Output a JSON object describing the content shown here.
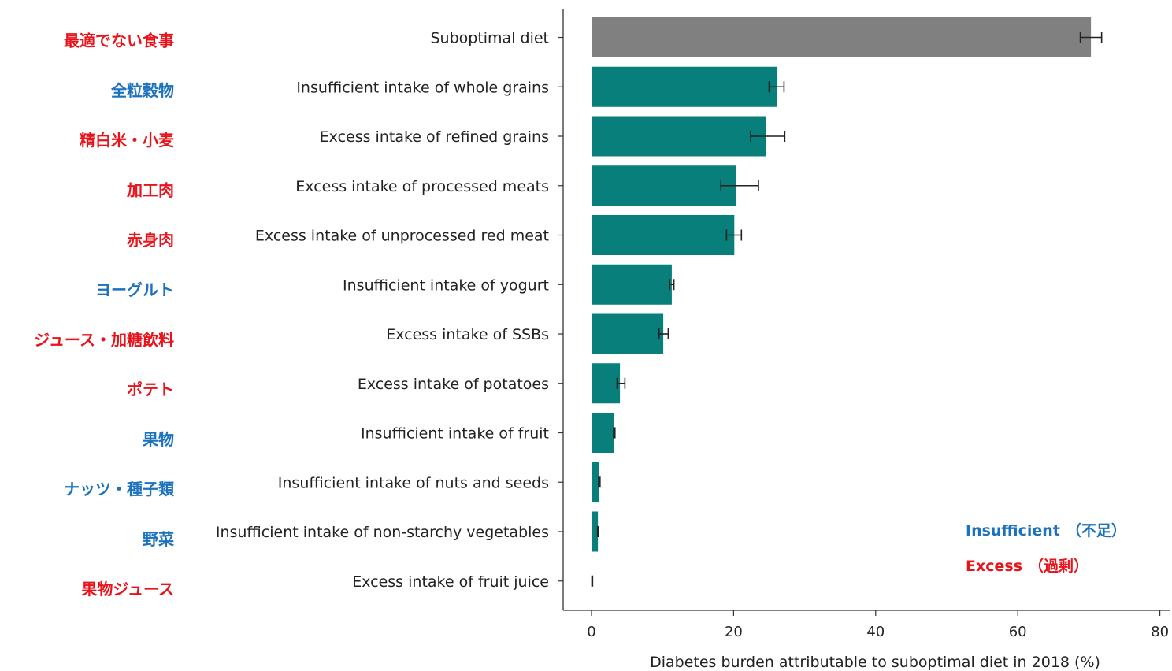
{
  "chart_data": {
    "type": "bar",
    "orientation": "horizontal",
    "categories": [
      "Suboptimal diet",
      "Insufficient intake of whole grains",
      "Excess intake of refined grains",
      "Excess intake of processed meats",
      "Excess intake of unprocessed red meat",
      "Insufficient intake of yogurt",
      "Excess intake of SSBs",
      "Excess intake of potatoes",
      "Insufficient intake of fruit",
      "Insufficient intake of nuts and seeds",
      "Insufficient intake of non-starchy vegetables",
      "Excess intake of fruit juice"
    ],
    "japanese_labels": [
      "最適でない食事",
      "全粒穀物",
      "精白米・小麦",
      "加工肉",
      "赤身肉",
      "ヨーグルト",
      "ジュース・加糖飲料",
      "ポテト",
      "果物",
      "ナッツ・種子類",
      "野菜",
      "果物ジュース"
    ],
    "types": [
      "total",
      "insufficient",
      "excess",
      "excess",
      "excess",
      "insufficient",
      "excess",
      "excess",
      "insufficient",
      "insufficient",
      "insufficient",
      "excess"
    ],
    "values": [
      70.3,
      26.1,
      24.6,
      20.3,
      20.1,
      11.3,
      10.1,
      4.0,
      3.2,
      1.1,
      0.9,
      0.1
    ],
    "error_low": [
      68.8,
      25.0,
      22.4,
      18.2,
      19.0,
      11.0,
      9.5,
      3.6,
      3.1,
      1.0,
      0.85,
      0.05
    ],
    "error_high": [
      71.8,
      27.1,
      27.2,
      23.5,
      21.1,
      11.6,
      10.8,
      4.7,
      3.3,
      1.2,
      0.95,
      0.15
    ],
    "xlabel": "Diabetes burden attributable to suboptimal diet in 2018 (%)",
    "ylabel": "",
    "xlim": [
      -4,
      80
    ],
    "xticks": [
      0,
      20,
      40,
      60,
      80
    ],
    "grid": false,
    "legend": {
      "placement": "bottom-right",
      "entries": [
        {
          "label": "Insufficient",
          "jp": "（不足）",
          "kind": "insufficient"
        },
        {
          "label": "Excess",
          "jp": "（過剰）",
          "kind": "excess"
        }
      ]
    },
    "colors": {
      "total_bar": "#808080",
      "bar": "#087F7A",
      "error_bar": "#222222",
      "insufficient_text": "#1C72BC",
      "excess_text": "#E8141C",
      "axis": "#333333"
    }
  }
}
